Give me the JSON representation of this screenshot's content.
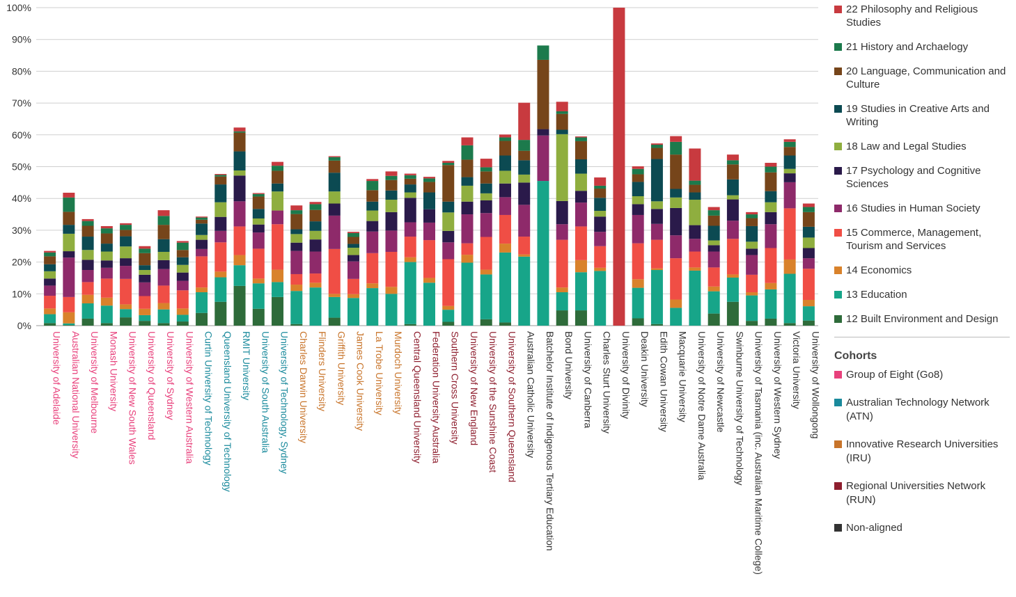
{
  "chart_data": {
    "type": "bar",
    "stacked": true,
    "ylim": [
      0,
      100
    ],
    "yticks": [
      "0%",
      "10%",
      "20%",
      "30%",
      "40%",
      "50%",
      "60%",
      "70%",
      "80%",
      "90%",
      "100%"
    ],
    "ytick_values": [
      0,
      10,
      20,
      30,
      40,
      50,
      60,
      70,
      80,
      90,
      100
    ],
    "grid": true,
    "legend_position": "right",
    "categories": [
      "University of Adelaide",
      "Australian National University",
      "University of Melbourne",
      "Monash University",
      "University of New South Wales",
      "University of Queensland",
      "University of Sydney",
      "University of Western Australia",
      "Curtin University of Technology",
      "Queensland University of Technology",
      "RMIT University",
      "University of South Australia",
      "University of Technology, Sydney",
      "Charles Darwin University",
      "Flinders University",
      "Griffith University",
      "James Cook University",
      "La Trobe University",
      "Murdoch University",
      "Central Queensland University",
      "Federation University Australia",
      "Southern Cross University",
      "University of New England",
      "University of the Sunshine Coast",
      "University of Southern Queensland",
      "Australian Catholic University",
      "Batchelor Institute of Indigenous Tertiary Education",
      "Bond University",
      "University of Canberra",
      "Charles Sturt University",
      "University of Divinity",
      "Deakin University",
      "Edith Cowan University",
      "Macquarie University",
      "University of Notre Dame Australia",
      "University of Newcastle",
      "Swinburne University of Technology",
      "University of Tasmania (inc. Australian Maritime College)",
      "University of Western Sydney",
      "Victoria University",
      "University of Wollongong"
    ],
    "category_cohorts": [
      "go8",
      "go8",
      "go8",
      "go8",
      "go8",
      "go8",
      "go8",
      "go8",
      "atn",
      "atn",
      "atn",
      "atn",
      "atn",
      "iru",
      "iru",
      "iru",
      "iru",
      "iru",
      "iru",
      "run",
      "run",
      "run",
      "run",
      "run",
      "run",
      "na",
      "na",
      "na",
      "na",
      "na",
      "na",
      "na",
      "na",
      "na",
      "na",
      "na",
      "na",
      "na",
      "na",
      "na",
      "na"
    ],
    "series": [
      {
        "name": "12 Built Environment and Design",
        "color": "#2e6b3a",
        "values": [
          0.8,
          0.2,
          2.2,
          0.8,
          2.6,
          1.5,
          0.8,
          1.3,
          4,
          7.5,
          12.5,
          5.3,
          9,
          0.5,
          0,
          2.5,
          0,
          0,
          0,
          0.5,
          0,
          1.2,
          0,
          2,
          1,
          0,
          0,
          4.8,
          4.8,
          0,
          0,
          2.3,
          0.5,
          0,
          0,
          3.8,
          7.5,
          1.5,
          2.2,
          0.8,
          1.6
        ]
      },
      {
        "name": "13 Education",
        "color": "#17a589",
        "values": [
          2.8,
          0.5,
          4.8,
          5.5,
          2.6,
          1.8,
          4.3,
          2.1,
          6.5,
          7.7,
          6.5,
          8,
          4.7,
          10.4,
          12,
          6.5,
          8.7,
          11.8,
          10,
          19.5,
          13.5,
          3.8,
          19.8,
          14.1,
          22,
          21.7,
          45.5,
          5.7,
          12,
          17.2,
          0,
          9.6,
          17,
          5.6,
          17.3,
          7,
          7.6,
          8,
          9.2,
          15.5,
          4.5
        ]
      },
      {
        "name": "14 Economics",
        "color": "#d9822b",
        "values": [
          1.8,
          3.5,
          2.7,
          2.5,
          1.5,
          2,
          2,
          2,
          1.5,
          1.8,
          3.2,
          1.5,
          3.9,
          2,
          1.5,
          1,
          1.2,
          1.5,
          2.2,
          1.5,
          1.5,
          1.2,
          2.5,
          1.5,
          2.8,
          0.7,
          0,
          1.5,
          3.8,
          1,
          0,
          2.7,
          0.5,
          2.6,
          1,
          1.5,
          1,
          1,
          2,
          4.5,
          2
        ]
      },
      {
        "name": "15 Commerce, Management, Tourism and Services",
        "color": "#f04e45",
        "values": [
          4,
          4.8,
          4,
          6,
          8,
          4,
          5.5,
          5.7,
          9.8,
          9.2,
          9,
          9.4,
          14.3,
          3.3,
          2.9,
          14.1,
          4.8,
          9.5,
          11,
          6.5,
          11.9,
          14.7,
          3.6,
          10.3,
          9,
          5.6,
          0,
          15,
          10.6,
          6.8,
          0,
          11.3,
          9,
          13,
          5,
          6,
          11.2,
          5.5,
          11,
          16.1,
          9.8
        ]
      },
      {
        "name": "16 Studies in Human Society",
        "color": "#8e2a6a",
        "values": [
          3.2,
          12.4,
          3.8,
          3.4,
          4.1,
          4.3,
          5.2,
          3,
          2.3,
          3.6,
          7.9,
          5.1,
          4.3,
          7.3,
          6.9,
          10.5,
          5.5,
          6.8,
          6.7,
          4.5,
          5.5,
          5.3,
          9.1,
          7.5,
          5.6,
          10,
          14.3,
          4.9,
          7.5,
          4.5,
          0,
          8.9,
          5,
          7.2,
          4,
          5,
          5.7,
          6.2,
          7.5,
          8.2,
          3.3
        ]
      },
      {
        "name": "17 Psychology and Cognitive Sciences",
        "color": "#2a1a4a",
        "values": [
          2.2,
          2,
          3.2,
          2.3,
          2.4,
          2.4,
          2.8,
          2.6,
          2.9,
          4.4,
          8.1,
          2.5,
          0,
          2.6,
          3.8,
          3.8,
          2,
          3.3,
          5.8,
          7.7,
          4.2,
          3.6,
          4,
          4,
          4.3,
          7,
          2,
          7.3,
          3.7,
          4.8,
          0,
          3.4,
          4.7,
          8.6,
          4.3,
          2,
          6.7,
          2,
          3.8,
          2.8,
          3.2
        ]
      },
      {
        "name": "18 Law and Legal Studies",
        "color": "#8fae3f",
        "values": [
          2.3,
          5.5,
          3.1,
          2.8,
          3.7,
          1.5,
          2.6,
          2.4,
          1.5,
          4.6,
          1.6,
          1.9,
          6,
          2.7,
          2.7,
          3.8,
          2.3,
          3.3,
          3.9,
          1.7,
          0,
          5.8,
          5,
          2.2,
          4,
          2.5,
          0,
          21,
          5.4,
          1.8,
          0,
          2.5,
          2.4,
          3.3,
          8,
          1.5,
          1.3,
          2.2,
          3.1,
          1.4,
          3.3
        ]
      },
      {
        "name": "19 Studies in Creative Arts and Writing",
        "color": "#0c4a52",
        "values": [
          2.2,
          2.8,
          4.2,
          2.5,
          3.2,
          1.5,
          4,
          2.4,
          3.6,
          5.6,
          6,
          3,
          2.5,
          1.5,
          3,
          5.9,
          1.2,
          2.8,
          2.9,
          2.5,
          5.3,
          3.4,
          2.7,
          3.1,
          4.8,
          4.5,
          0,
          1.4,
          4.5,
          4.1,
          0,
          4.5,
          13.3,
          2.7,
          2.3,
          4.6,
          5,
          4.9,
          3.5,
          4.2,
          3.4
        ]
      },
      {
        "name": "20 Language, Communication and Culture",
        "color": "#76451a",
        "values": [
          2.5,
          4.1,
          3.4,
          3.2,
          2,
          3.8,
          4.5,
          2.3,
          1.2,
          2.5,
          5.9,
          3.9,
          4,
          4.8,
          3.6,
          3.8,
          2.2,
          3.6,
          3.3,
          1.8,
          3.3,
          11.5,
          5.5,
          3.8,
          4.6,
          3,
          21.8,
          5,
          5.7,
          2.9,
          0,
          2.4,
          3.5,
          10.8,
          2.4,
          3.2,
          4.7,
          2.5,
          5.9,
          2.7,
          4.6
        ]
      },
      {
        "name": "21 History and Archaelogy",
        "color": "#1c7a4c",
        "values": [
          1.2,
          4.5,
          1.5,
          1.6,
          1.6,
          1.4,
          2.8,
          2.3,
          0.7,
          0.5,
          0.4,
          0.8,
          1.6,
          1.2,
          1.8,
          1.1,
          1.2,
          2.9,
          1.3,
          1.1,
          1.1,
          0.7,
          4.5,
          1.3,
          1.1,
          3.4,
          4.5,
          0.8,
          1.2,
          0.9,
          0,
          1.7,
          1,
          4,
          1.3,
          1.7,
          1.3,
          1.2,
          1.8,
          1.6,
          1.6
        ]
      },
      {
        "name": "22 Philosophy and Religious Studies",
        "color": "#c83a3f",
        "values": [
          0.5,
          1.5,
          0.6,
          0.7,
          0.5,
          0.8,
          1.8,
          0.5,
          0.3,
          0.3,
          1.2,
          0.3,
          1.2,
          1.5,
          0.7,
          0.3,
          0.4,
          0.6,
          1.4,
          0.5,
          0.5,
          0.6,
          2.5,
          2.7,
          0.9,
          11.7,
          0,
          3,
          0.3,
          2.6,
          100,
          0.8,
          0.4,
          1.8,
          10.1,
          1,
          1.8,
          0.7,
          1.2,
          0.8,
          1.1
        ]
      }
    ],
    "legend_entries": [
      {
        "label": "22 Philosophy and Religious Studies",
        "color": "#c83a3f"
      },
      {
        "label": "21 History and Archaelogy",
        "color": "#1c7a4c"
      },
      {
        "label": "20 Language, Communication and Culture",
        "color": "#76451a"
      },
      {
        "label": "19 Studies in Creative Arts and Writing",
        "color": "#0c4a52"
      },
      {
        "label": "18 Law and Legal Studies",
        "color": "#8fae3f"
      },
      {
        "label": "17 Psychology and Cognitive Sciences",
        "color": "#2a1a4a"
      },
      {
        "label": "16 Studies in Human Society",
        "color": "#8e2a6a"
      },
      {
        "label": "15 Commerce, Management, Tourism and Services",
        "color": "#f04e45"
      },
      {
        "label": "14 Economics",
        "color": "#d9822b"
      },
      {
        "label": "13 Education",
        "color": "#17a589"
      },
      {
        "label": "12 Built Environment and Design",
        "color": "#2e6b3a"
      }
    ]
  },
  "cohorts": {
    "title": "Cohorts",
    "items": [
      {
        "key": "go8",
        "label": "Group of Eight (Go8)",
        "color": "#e8417c"
      },
      {
        "key": "atn",
        "label": "Australian Technology Network (ATN)",
        "color": "#1a8a9c"
      },
      {
        "key": "iru",
        "label": "Innovative Research Universities (IRU)",
        "color": "#c8742a"
      },
      {
        "key": "run",
        "label": "Regional Universities Network (RUN)",
        "color": "#8e1e2e"
      },
      {
        "key": "na",
        "label": "Non-aligned",
        "color": "#333333"
      }
    ]
  }
}
